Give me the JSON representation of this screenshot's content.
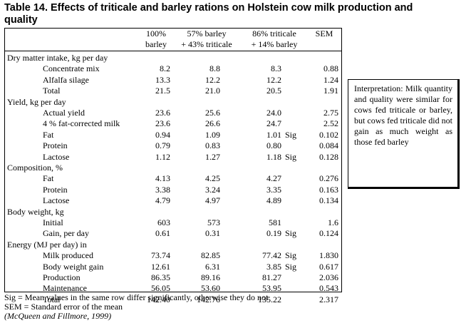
{
  "title": "Table 14.  Effects of triticale and barley rations on Holstein cow milk production and quality",
  "columns": [
    {
      "line1": "100%",
      "line2": "barley"
    },
    {
      "line1": "57% barley",
      "line2": "+ 43% triticale"
    },
    {
      "line1": "86% triticale",
      "line2": "+ 14% barley"
    },
    {
      "line1": "",
      "line2": "SEM"
    }
  ],
  "rows": [
    {
      "kind": "group",
      "label": "Dry matter intake, kg per day"
    },
    {
      "kind": "item",
      "label": "Concentrate mix",
      "v1": "8.2",
      "v2": "8.8",
      "v3": "8.3",
      "sig": "",
      "sem": "0.88"
    },
    {
      "kind": "item",
      "label": "Alfalfa silage",
      "v1": "13.3",
      "v2": "12.2",
      "v3": "12.2",
      "sig": "",
      "sem": "1.24"
    },
    {
      "kind": "item",
      "label": "Total",
      "v1": "21.5",
      "v2": "21.0",
      "v3": "20.5",
      "sig": "",
      "sem": "1.91"
    },
    {
      "kind": "group",
      "label": "Yield, kg per day"
    },
    {
      "kind": "item",
      "label": "Actual yield",
      "v1": "23.6",
      "v2": "25.6",
      "v3": "24.0",
      "sig": "",
      "sem": "2.75"
    },
    {
      "kind": "item",
      "label": "4 % fat-corrected milk",
      "v1": "23.6",
      "v2": "26.6",
      "v3": "24.7",
      "sig": "",
      "sem": "2.52"
    },
    {
      "kind": "item",
      "label": "Fat",
      "v1": "0.94",
      "v2": "1.09",
      "v3": "1.01",
      "sig": "Sig",
      "sem": "0.102"
    },
    {
      "kind": "item",
      "label": "Protein",
      "v1": "0.79",
      "v2": "0.83",
      "v3": "0.80",
      "sig": "",
      "sem": "0.084"
    },
    {
      "kind": "item",
      "label": "Lactose",
      "v1": "1.12",
      "v2": "1.27",
      "v3": "1.18",
      "sig": "Sig",
      "sem": "0.128"
    },
    {
      "kind": "group",
      "label": "Composition, %"
    },
    {
      "kind": "item",
      "label": "Fat",
      "v1": "4.13",
      "v2": "4.25",
      "v3": "4.27",
      "sig": "",
      "sem": "0.276"
    },
    {
      "kind": "item",
      "label": "Protein",
      "v1": "3.38",
      "v2": "3.24",
      "v3": "3.35",
      "sig": "",
      "sem": "0.163"
    },
    {
      "kind": "item",
      "label": "Lactose",
      "v1": "4.79",
      "v2": "4.97",
      "v3": "4.89",
      "sig": "",
      "sem": "0.134"
    },
    {
      "kind": "group",
      "label": "Body weight, kg"
    },
    {
      "kind": "item",
      "label": "Initial",
      "v1": "603",
      "v2": "573",
      "v3": "581",
      "sig": "",
      "sem": "1.6"
    },
    {
      "kind": "item",
      "label": "Gain, per day",
      "v1": "0.61",
      "v2": "0.31",
      "v3": "0.19",
      "sig": "Sig",
      "sem": "0.124"
    },
    {
      "kind": "group",
      "label": "Energy (MJ per day) in"
    },
    {
      "kind": "item",
      "label": "Milk produced",
      "v1": "73.74",
      "v2": "82.85",
      "v3": "77.42",
      "sig": "Sig",
      "sem": "1.830"
    },
    {
      "kind": "item",
      "label": "Body weight gain",
      "v1": "12.61",
      "v2": "6.31",
      "v3": "3.85",
      "sig": "Sig",
      "sem": "0.617"
    },
    {
      "kind": "item",
      "label": "Production",
      "v1": "86.35",
      "v2": "89.16",
      "v3": "81.27",
      "sig": "",
      "sem": "2.036"
    },
    {
      "kind": "item",
      "label": "Maintenance",
      "v1": "56.05",
      "v2": "53.60",
      "v3": "53.95",
      "sig": "",
      "sem": "0.543"
    },
    {
      "kind": "item",
      "label": "Total",
      "v1": "142.40",
      "v2": "142.76",
      "v3": "135.22",
      "sig": "",
      "sem": "2.317"
    }
  ],
  "footnotes": {
    "sig": "Sig = Mean values in the same row differ significantly, otherwise they do not",
    "sem": "SEM = Standard error of the mean",
    "citation": "(McQueen and Fillmore, 1999)"
  },
  "interpretation": "Interpretation: Milk quantity and quality were similar for cows fed triticale or barley, but cows fed triticale did not gain as much weight as those fed barley"
}
